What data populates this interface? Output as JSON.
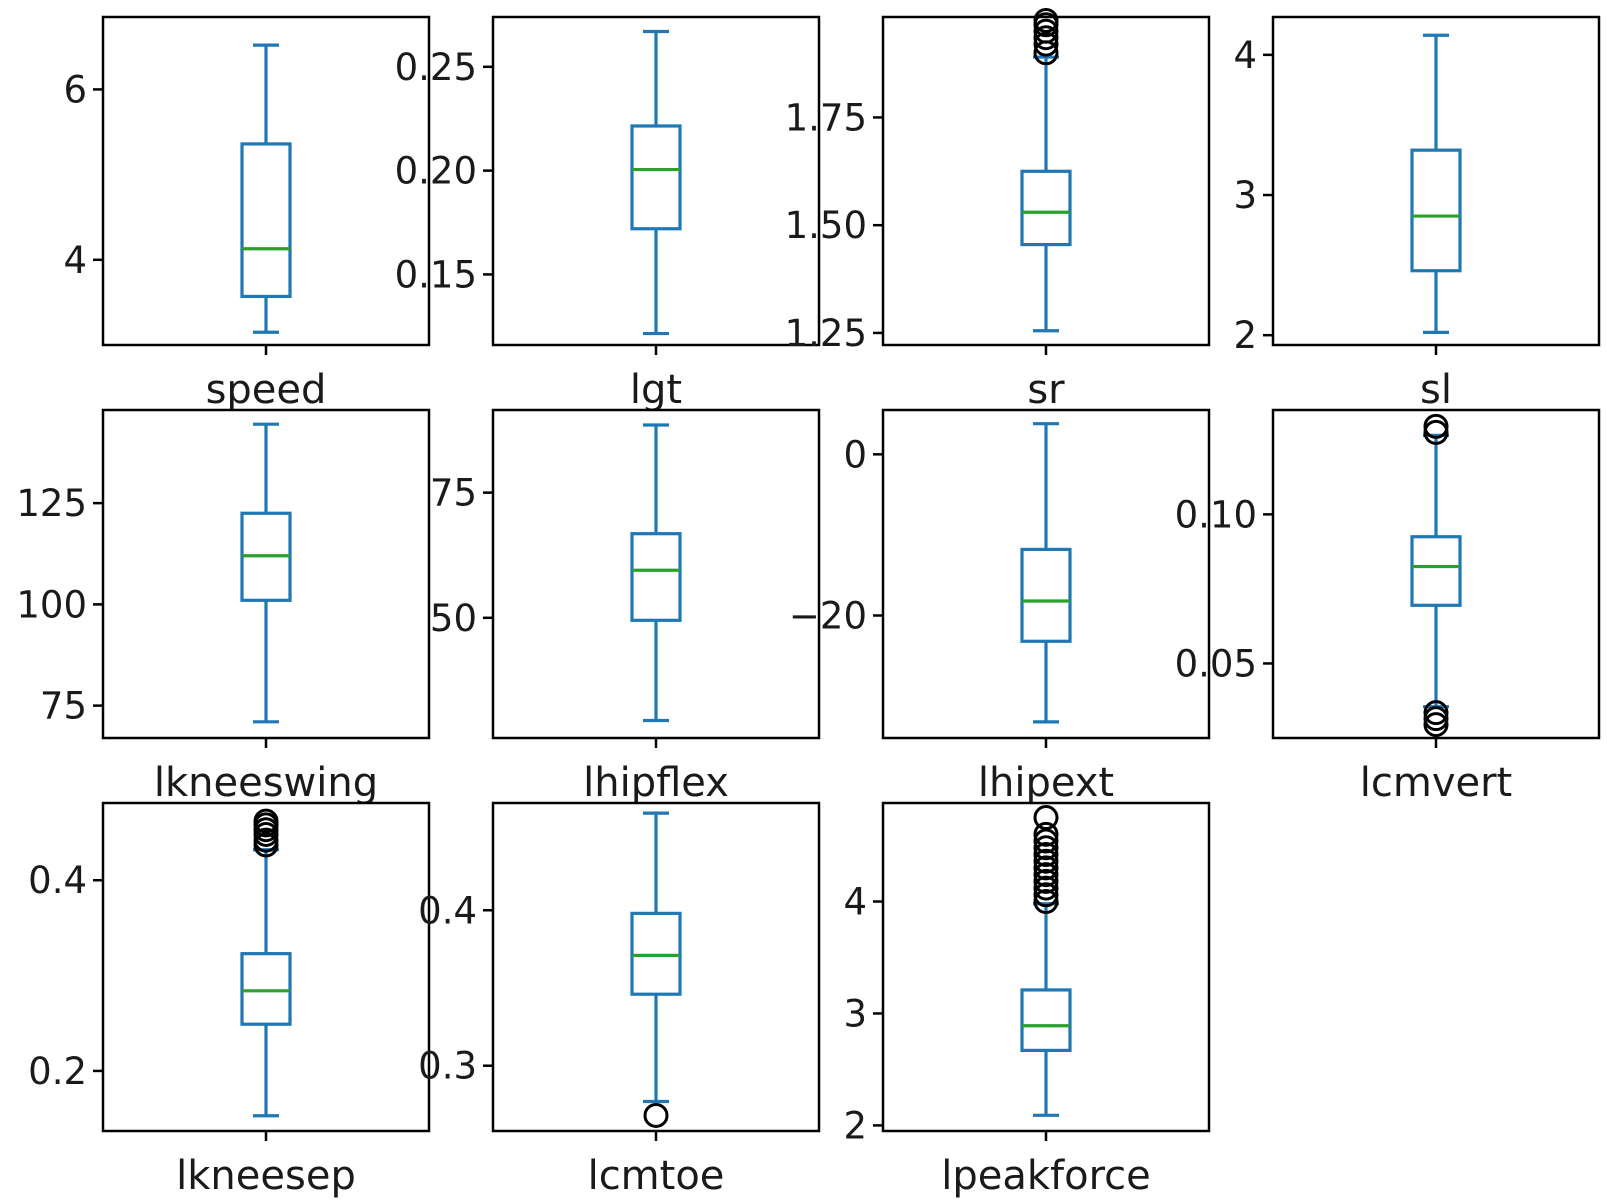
{
  "chart_data": {
    "type": "box",
    "layout": "3x4 grid of boxplots",
    "colors": {
      "box": "#1f77b4",
      "whisker": "#1f77b4",
      "median": "#2ca02c",
      "flier": "#000000"
    },
    "panels": [
      {
        "label": "speed",
        "ylim": [
          3.0,
          6.85
        ],
        "yticks": [
          4,
          6
        ],
        "ytick_labels": [
          "4",
          "6"
        ],
        "whisker_low": 3.15,
        "q1": 3.57,
        "median": 4.13,
        "q3": 5.36,
        "whisker_high": 6.52,
        "fliers": []
      },
      {
        "label": "lgt",
        "ylim": [
          0.116,
          0.274
        ],
        "yticks": [
          0.15,
          0.2,
          0.25
        ],
        "ytick_labels": [
          "0.15",
          "0.20",
          "0.25"
        ],
        "whisker_low": 0.1215,
        "q1": 0.172,
        "median": 0.2005,
        "q3": 0.2215,
        "whisker_high": 0.267,
        "fliers": []
      },
      {
        "label": "sr",
        "ylim": [
          1.222,
          1.983
        ],
        "yticks": [
          1.25,
          1.5,
          1.75
        ],
        "ytick_labels": [
          "1.25",
          "1.50",
          "1.75"
        ],
        "whisker_low": 1.255,
        "q1": 1.455,
        "median": 1.53,
        "q3": 1.625,
        "whisker_high": 1.89,
        "fliers": [
          1.9,
          1.92,
          1.935,
          1.95,
          1.965,
          1.975
        ]
      },
      {
        "label": "sl",
        "ylim": [
          1.93,
          4.27
        ],
        "yticks": [
          2,
          3,
          4
        ],
        "ytick_labels": [
          "2",
          "3",
          "4"
        ],
        "whisker_low": 2.02,
        "q1": 2.46,
        "median": 2.85,
        "q3": 3.32,
        "whisker_high": 4.14,
        "fliers": []
      },
      {
        "label": "lkneeswing",
        "ylim": [
          67,
          148
        ],
        "yticks": [
          75,
          100,
          125
        ],
        "ytick_labels": [
          "75",
          "100",
          "125"
        ],
        "whisker_low": 71,
        "q1": 101,
        "median": 112,
        "q3": 122.5,
        "whisker_high": 144.5,
        "fliers": []
      },
      {
        "label": "lhipflex",
        "ylim": [
          26,
          91.5
        ],
        "yticks": [
          50,
          75
        ],
        "ytick_labels": [
          "50",
          "75"
        ],
        "whisker_low": 29.5,
        "q1": 49.5,
        "median": 59.5,
        "q3": 66.8,
        "whisker_high": 88.5,
        "fliers": []
      },
      {
        "label": "lhipext",
        "ylim": [
          -35.2,
          5.5
        ],
        "yticks": [
          -20,
          0
        ],
        "ytick_labels": [
          "−20",
          "0"
        ],
        "whisker_low": -33.2,
        "q1": -23.2,
        "median": -18.2,
        "q3": -11.8,
        "whisker_high": 3.8,
        "fliers": []
      },
      {
        "label": "lcmvert",
        "ylim": [
          0.025,
          0.135
        ],
        "yticks": [
          0.05,
          0.1
        ],
        "ytick_labels": [
          "0.05",
          "0.10"
        ],
        "whisker_low": 0.0355,
        "q1": 0.0695,
        "median": 0.0825,
        "q3": 0.0925,
        "whisker_high": 0.1265,
        "fliers": [
          0.0295,
          0.0315,
          0.0335,
          0.1275,
          0.1295
        ]
      },
      {
        "label": "lkneesep",
        "ylim": [
          0.137,
          0.481
        ],
        "yticks": [
          0.2,
          0.4
        ],
        "ytick_labels": [
          "0.2",
          "0.4"
        ],
        "whisker_low": 0.153,
        "q1": 0.249,
        "median": 0.284,
        "q3": 0.323,
        "whisker_high": 0.432,
        "fliers": [
          0.437,
          0.442,
          0.448,
          0.453,
          0.458,
          0.462
        ]
      },
      {
        "label": "lcmtoe",
        "ylim": [
          0.258,
          0.469
        ],
        "yticks": [
          0.3,
          0.4
        ],
        "ytick_labels": [
          "0.3",
          "0.4"
        ],
        "whisker_low": 0.277,
        "q1": 0.346,
        "median": 0.371,
        "q3": 0.398,
        "whisker_high": 0.4625,
        "fliers": [
          0.268
        ]
      },
      {
        "label": "lpeakforce",
        "ylim": [
          1.95,
          4.88
        ],
        "yticks": [
          2,
          3,
          4
        ],
        "ytick_labels": [
          "2",
          "3",
          "4"
        ],
        "whisker_low": 2.09,
        "q1": 2.67,
        "median": 2.89,
        "q3": 3.21,
        "whisker_high": 3.98,
        "fliers": [
          4.0,
          4.06,
          4.12,
          4.18,
          4.24,
          4.3,
          4.36,
          4.42,
          4.48,
          4.54,
          4.6,
          4.75
        ]
      }
    ]
  }
}
